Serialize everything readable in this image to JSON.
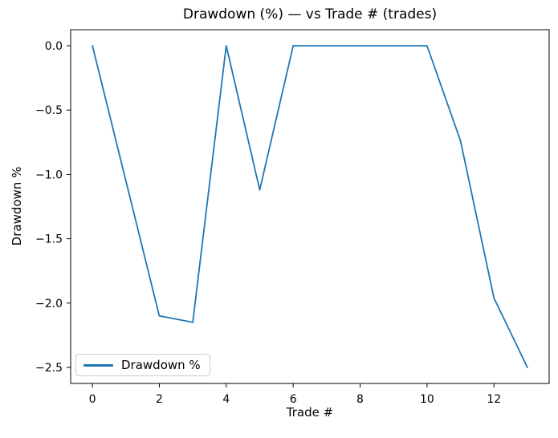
{
  "chart_data": {
    "type": "line",
    "title": "Drawdown (%) — vs Trade # (trades)",
    "xlabel": "Trade #",
    "ylabel": "Drawdown %",
    "x": [
      0,
      1,
      2,
      3,
      4,
      5,
      6,
      7,
      8,
      9,
      10,
      11,
      12,
      13
    ],
    "series": [
      {
        "name": "Drawdown %",
        "color": "#1f77b4",
        "values": [
          0.0,
          -1.05,
          -2.1,
          -2.15,
          0.0,
          -1.12,
          0.0,
          0.0,
          0.0,
          0.0,
          0.0,
          -0.74,
          -1.96,
          -2.5
        ]
      }
    ],
    "xlim": [
      -0.65,
      13.65
    ],
    "ylim": [
      -2.625,
      0.125
    ],
    "xticks": [
      0,
      2,
      4,
      6,
      8,
      10,
      12
    ],
    "xtick_labels": [
      "0",
      "2",
      "4",
      "6",
      "8",
      "10",
      "12"
    ],
    "yticks": [
      0.0,
      -0.5,
      -1.0,
      -1.5,
      -2.0,
      -2.5
    ],
    "ytick_labels": [
      "0.0",
      "−0.5",
      "−1.0",
      "−1.5",
      "−2.0",
      "−2.5"
    ],
    "grid": false,
    "axis_color": "#000000",
    "legend": {
      "position": "lower-left",
      "entries": [
        {
          "label": "Drawdown %",
          "color": "#1f77b4"
        }
      ]
    }
  }
}
